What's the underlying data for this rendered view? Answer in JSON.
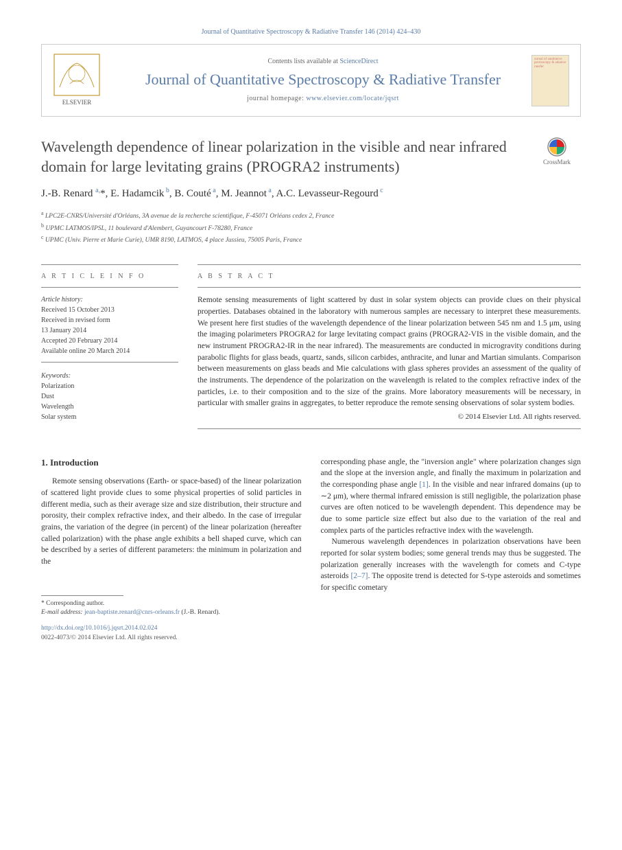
{
  "citation": "Journal of Quantitative Spectroscopy & Radiative Transfer 146 (2014) 424–430",
  "header": {
    "contents_prefix": "Contents lists available at ",
    "contents_link": "ScienceDirect",
    "journal_name": "Journal of Quantitative Spectroscopy & Radiative Transfer",
    "homepage_prefix": "journal homepage: ",
    "homepage_url": "www.elsevier.com/locate/jqsrt",
    "cover_text": "ournal of uantitative pectroscopy & adiative ransfer"
  },
  "article": {
    "title": "Wavelength dependence of linear polarization in the visible and near infrared domain for large levitating grains (PROGRA2 instruments)",
    "crossmark_label": "CrossMark",
    "authors_html": "J.-B. Renard <sup>a,</sup><span class='ast'>*</span>, E. Hadamcik<sup> b</sup>, B. Couté<sup> a</sup>, M. Jeannot<sup> a</sup>, A.C. Levasseur-Regourd<sup> c</sup>",
    "affiliations": [
      {
        "sup": "a",
        "text": "LPC2E-CNRS/Université d'Orléans, 3A avenue de la recherche scientifique, F-45071 Orléans cedex 2, France"
      },
      {
        "sup": "b",
        "text": "UPMC LATMOS/IPSL, 11 boulevard d'Alembert, Guyancourt F-78280, France"
      },
      {
        "sup": "c",
        "text": "UPMC (Univ. Pierre et Marie Curie), UMR 8190, LATMOS, 4 place Jussieu, 75005 Paris, France"
      }
    ]
  },
  "info": {
    "label": "A R T I C L E  I N F O",
    "history_label": "Article history:",
    "history": [
      "Received 15 October 2013",
      "Received in revised form",
      "13 January 2014",
      "Accepted 20 February 2014",
      "Available online 20 March 2014"
    ],
    "keywords_label": "Keywords:",
    "keywords": [
      "Polarization",
      "Dust",
      "Wavelength",
      "Solar system"
    ]
  },
  "abstract": {
    "label": "A B S T R A C T",
    "text": "Remote sensing measurements of light scattered by dust in solar system objects can provide clues on their physical properties. Databases obtained in the laboratory with numerous samples are necessary to interpret these measurements. We present here first studies of the wavelength dependence of the linear polarization between 545 nm and 1.5 μm, using the imaging polarimeters PROGRA2 for large levitating compact grains (PROGRA2-VIS in the visible domain, and the new instrument PROGRA2-IR in the near infrared). The measurements are conducted in microgravity conditions during parabolic flights for glass beads, quartz, sands, silicon carbides, anthracite, and lunar and Martian simulants. Comparison between measurements on glass beads and Mie calculations with glass spheres provides an assessment of the quality of the instruments. The dependence of the polarization on the wavelength is related to the complex refractive index of the particles, i.e. to their composition and to the size of the grains. More laboratory measurements will be necessary, in particular with smaller grains in aggregates, to better reproduce the remote sensing observations of solar system bodies.",
    "copyright": "© 2014 Elsevier Ltd. All rights reserved."
  },
  "body": {
    "section_number": "1.",
    "section_title": "Introduction",
    "col1_p1": "Remote sensing observations (Earth- or space-based) of the linear polarization of scattered light provide clues to some physical properties of solid particles in different media, such as their average size and size distribution, their structure and porosity, their complex refractive index, and their albedo. In the case of irregular grains, the variation of the degree (in percent) of the linear polarization (hereafter called polarization) with the phase angle exhibits a bell shaped curve, which can be described by a series of different parameters: the minimum in polarization and the",
    "col2_p1_pre": "corresponding phase angle, the \"inversion angle\" where polarization changes sign and the slope at the inversion angle, and finally the maximum in polarization and the corresponding phase angle ",
    "col2_ref1": "[1]",
    "col2_p1_post": ". In the visible and near infrared domains (up to ∼2 μm), where thermal infrared emission is still negligible, the polarization phase curves are often noticed to be wavelength dependent. This dependence may be due to some particle size effect but also due to the variation of the real and complex parts of the particles refractive index with the wavelength.",
    "col2_p2_pre": "Numerous wavelength dependences in polarization observations have been reported for solar system bodies; some general trends may thus be suggested. The polarization generally increases with the wavelength for comets and C-type asteroids ",
    "col2_ref2": "[2–7]",
    "col2_p2_post": ". The opposite trend is detected for S-type asteroids and sometimes for specific cometary"
  },
  "footnotes": {
    "corr": "* Corresponding author.",
    "email_label": "E-mail address: ",
    "email": "jean-baptiste.renard@cnrs-orleans.fr",
    "email_suffix": " (J.-B. Renard).",
    "doi": "http://dx.doi.org/10.1016/j.jqsrt.2014.02.024",
    "issn": "0022-4073/© 2014 Elsevier Ltd. All rights reserved."
  },
  "colors": {
    "link": "#5a7ca8",
    "text": "#333333",
    "border": "#cccccc"
  }
}
